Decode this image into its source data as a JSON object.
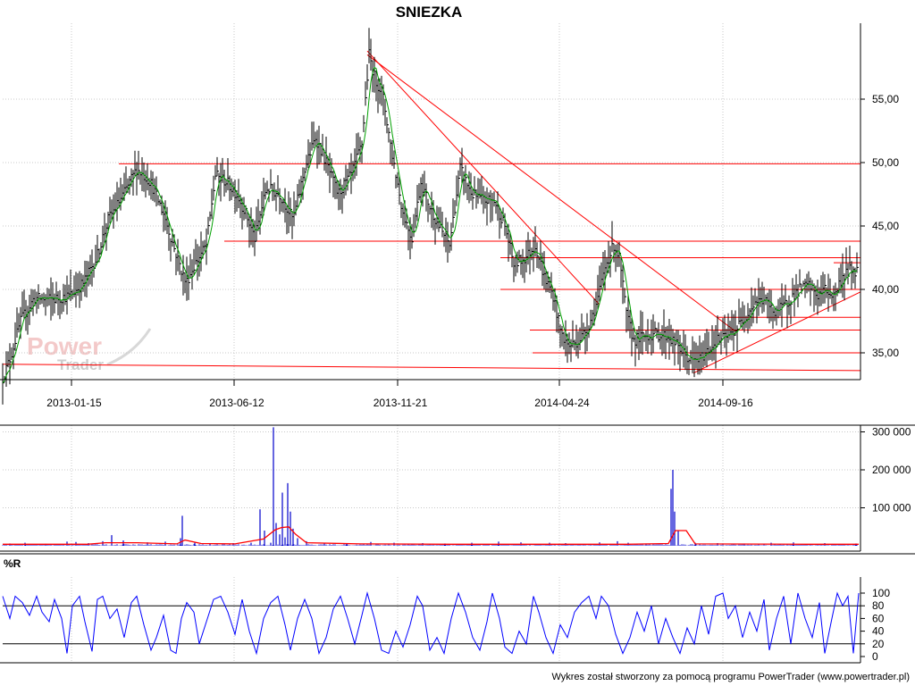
{
  "chart_data": [
    {
      "panel": "price",
      "type": "line",
      "title": "SNIEZKA",
      "xlabel": "",
      "ylabel": "",
      "x_tick_labels": [
        "2013-01-15",
        "2013-06-12",
        "2013-11-21",
        "2014-04-24",
        "2014-09-16"
      ],
      "y_tick_labels": [
        "35,00",
        "40,00",
        "45,00",
        "50,00",
        "55,00"
      ],
      "ylim": [
        32.5,
        60
      ],
      "grid": true,
      "price_anchors": [
        [
          0,
          33.0
        ],
        [
          8,
          34.5
        ],
        [
          20,
          37.5
        ],
        [
          35,
          39.3
        ],
        [
          55,
          39.2
        ],
        [
          75,
          39.5
        ],
        [
          90,
          40.5
        ],
        [
          105,
          42.5
        ],
        [
          118,
          45.5
        ],
        [
          135,
          47.5
        ],
        [
          150,
          49.5
        ],
        [
          165,
          48.5
        ],
        [
          180,
          46.0
        ],
        [
          193,
          43.0
        ],
        [
          205,
          40.5
        ],
        [
          215,
          42.0
        ],
        [
          228,
          43.5
        ],
        [
          238,
          49.0
        ],
        [
          250,
          48.5
        ],
        [
          262,
          47.5
        ],
        [
          272,
          46.0
        ],
        [
          282,
          44.0
        ],
        [
          295,
          48.0
        ],
        [
          310,
          47.5
        ],
        [
          325,
          45.5
        ],
        [
          338,
          49.5
        ],
        [
          350,
          52.0
        ],
        [
          362,
          50.0
        ],
        [
          375,
          47.5
        ],
        [
          390,
          49.0
        ],
        [
          402,
          51.5
        ],
        [
          410,
          58.5
        ],
        [
          417,
          56.5
        ],
        [
          425,
          55.5
        ],
        [
          435,
          51.0
        ],
        [
          448,
          46.0
        ],
        [
          458,
          44.0
        ],
        [
          468,
          48.5
        ],
        [
          478,
          46.5
        ],
        [
          488,
          45.0
        ],
        [
          500,
          43.5
        ],
        [
          512,
          49.5
        ],
        [
          525,
          47.5
        ],
        [
          538,
          47.0
        ],
        [
          550,
          47.0
        ],
        [
          562,
          45.0
        ],
        [
          572,
          42.0
        ],
        [
          585,
          42.5
        ],
        [
          596,
          43.5
        ],
        [
          606,
          41.0
        ],
        [
          616,
          39.5
        ],
        [
          625,
          36.5
        ],
        [
          633,
          35.5
        ],
        [
          645,
          36.0
        ],
        [
          655,
          37.0
        ],
        [
          665,
          39.0
        ],
        [
          675,
          42.0
        ],
        [
          684,
          43.5
        ],
        [
          690,
          42.5
        ],
        [
          698,
          38.0
        ],
        [
          706,
          36.0
        ],
        [
          718,
          36.3
        ],
        [
          730,
          36.5
        ],
        [
          745,
          36.3
        ],
        [
          758,
          35.3
        ],
        [
          770,
          34.3
        ],
        [
          780,
          34.5
        ],
        [
          790,
          35.3
        ],
        [
          800,
          36.0
        ],
        [
          812,
          36.3
        ],
        [
          822,
          37.0
        ],
        [
          832,
          38.0
        ],
        [
          842,
          39.0
        ],
        [
          852,
          39.2
        ],
        [
          862,
          38.3
        ],
        [
          872,
          38.5
        ],
        [
          882,
          39.3
        ],
        [
          892,
          40.0
        ],
        [
          902,
          40.3
        ],
        [
          912,
          39.5
        ],
        [
          920,
          40.0
        ],
        [
          930,
          39.5
        ],
        [
          940,
          41.0
        ],
        [
          948,
          41.5
        ],
        [
          956,
          41.5
        ]
      ],
      "horizontal_levels": [
        {
          "x_from": 130,
          "x_to": 960,
          "y": 49.9
        },
        {
          "x_from": 248,
          "x_to": 960,
          "y": 43.8
        },
        {
          "x_from": 557,
          "x_to": 960,
          "y": 42.5
        },
        {
          "x_from": 557,
          "x_to": 960,
          "y": 40.0
        },
        {
          "x_from": 590,
          "x_to": 960,
          "y": 36.8
        },
        {
          "x_from": 593,
          "x_to": 960,
          "y": 35.0
        },
        {
          "x_from": 800,
          "x_to": 960,
          "y": 37.8
        },
        {
          "x_from": 930,
          "x_to": 960,
          "y": 42.1
        }
      ],
      "trend_lines": [
        {
          "x1": 0,
          "y1": 34.1,
          "x2": 960,
          "y2": 33.6
        },
        {
          "x1": 408,
          "y1": 58.8,
          "x2": 668,
          "y2": 38.8
        },
        {
          "x1": 408,
          "y1": 58.5,
          "x2": 820,
          "y2": 36.7
        },
        {
          "x1": 773,
          "y1": 33.4,
          "x2": 960,
          "y2": 39.8
        }
      ]
    },
    {
      "panel": "volume",
      "type": "bar",
      "y_tick_labels": [
        "100 000",
        "200 000",
        "300 000"
      ],
      "ylim": [
        0,
        320000
      ],
      "volume_spikes": [
        [
          8,
          6000
        ],
        [
          25,
          8000
        ],
        [
          48,
          5000
        ],
        [
          72,
          11000
        ],
        [
          82,
          10000
        ],
        [
          96,
          7000
        ],
        [
          112,
          12000
        ],
        [
          122,
          28000
        ],
        [
          135,
          14000
        ],
        [
          162,
          9000
        ],
        [
          182,
          11000
        ],
        [
          199,
          20000
        ],
        [
          201,
          79000
        ],
        [
          215,
          8000
        ],
        [
          232,
          6000
        ],
        [
          258,
          7000
        ],
        [
          278,
          8000
        ],
        [
          288,
          96000
        ],
        [
          293,
          40000
        ],
        [
          300,
          8000
        ],
        [
          303,
          312000
        ],
        [
          306,
          60000
        ],
        [
          310,
          30000
        ],
        [
          313,
          140000
        ],
        [
          316,
          22000
        ],
        [
          319,
          165000
        ],
        [
          322,
          90000
        ],
        [
          325,
          45000
        ],
        [
          330,
          20000
        ],
        [
          340,
          12000
        ],
        [
          360,
          6000
        ],
        [
          385,
          7000
        ],
        [
          412,
          10000
        ],
        [
          438,
          8000
        ],
        [
          470,
          7000
        ],
        [
          495,
          6000
        ],
        [
          525,
          8000
        ],
        [
          555,
          11000
        ],
        [
          580,
          9000
        ],
        [
          612,
          8000
        ],
        [
          630,
          7000
        ],
        [
          668,
          9000
        ],
        [
          688,
          12000
        ],
        [
          700,
          8000
        ],
        [
          720,
          6000
        ],
        [
          748,
          150000
        ],
        [
          750,
          200000
        ],
        [
          752,
          90000
        ],
        [
          756,
          40000
        ],
        [
          775,
          8000
        ],
        [
          800,
          7000
        ],
        [
          830,
          6000
        ],
        [
          860,
          8000
        ],
        [
          885,
          9000
        ],
        [
          920,
          7000
        ],
        [
          955,
          6000
        ]
      ],
      "volume_average": [
        [
          0,
          4000
        ],
        [
          60,
          4000
        ],
        [
          95,
          4000
        ],
        [
          115,
          8000
        ],
        [
          150,
          8000
        ],
        [
          195,
          5000
        ],
        [
          204,
          15000
        ],
        [
          222,
          6000
        ],
        [
          260,
          5000
        ],
        [
          292,
          18000
        ],
        [
          305,
          42000
        ],
        [
          312,
          48000
        ],
        [
          320,
          50000
        ],
        [
          328,
          30000
        ],
        [
          340,
          8000
        ],
        [
          400,
          5000
        ],
        [
          500,
          4000
        ],
        [
          600,
          4000
        ],
        [
          700,
          4000
        ],
        [
          745,
          6000
        ],
        [
          753,
          40000
        ],
        [
          765,
          40000
        ],
        [
          775,
          5000
        ],
        [
          900,
          4000
        ],
        [
          958,
          4000
        ]
      ]
    },
    {
      "panel": "williams_r",
      "type": "line",
      "title": "%R",
      "y_tick_labels": [
        "0",
        "20",
        "40",
        "60",
        "80",
        "100"
      ],
      "reference_levels": [
        20,
        80
      ],
      "ylim": [
        0,
        100
      ],
      "wr_anchors": [
        [
          0,
          95
        ],
        [
          8,
          60
        ],
        [
          14,
          95
        ],
        [
          22,
          85
        ],
        [
          30,
          65
        ],
        [
          38,
          95
        ],
        [
          44,
          70
        ],
        [
          52,
          55
        ],
        [
          58,
          90
        ],
        [
          66,
          60
        ],
        [
          72,
          5
        ],
        [
          78,
          80
        ],
        [
          86,
          95
        ],
        [
          92,
          55
        ],
        [
          100,
          8
        ],
        [
          106,
          90
        ],
        [
          112,
          95
        ],
        [
          120,
          60
        ],
        [
          128,
          75
        ],
        [
          136,
          30
        ],
        [
          144,
          85
        ],
        [
          150,
          95
        ],
        [
          158,
          50
        ],
        [
          166,
          10
        ],
        [
          172,
          30
        ],
        [
          180,
          65
        ],
        [
          188,
          10
        ],
        [
          194,
          5
        ],
        [
          200,
          60
        ],
        [
          206,
          85
        ],
        [
          214,
          70
        ],
        [
          220,
          20
        ],
        [
          228,
          55
        ],
        [
          236,
          90
        ],
        [
          244,
          95
        ],
        [
          252,
          70
        ],
        [
          260,
          35
        ],
        [
          268,
          90
        ],
        [
          276,
          40
        ],
        [
          284,
          5
        ],
        [
          292,
          60
        ],
        [
          300,
          85
        ],
        [
          308,
          95
        ],
        [
          316,
          50
        ],
        [
          322,
          10
        ],
        [
          330,
          60
        ],
        [
          338,
          90
        ],
        [
          346,
          60
        ],
        [
          354,
          5
        ],
        [
          362,
          30
        ],
        [
          370,
          75
        ],
        [
          378,
          95
        ],
        [
          386,
          60
        ],
        [
          394,
          20
        ],
        [
          402,
          65
        ],
        [
          408,
          100
        ],
        [
          416,
          60
        ],
        [
          424,
          10
        ],
        [
          432,
          5
        ],
        [
          440,
          40
        ],
        [
          448,
          15
        ],
        [
          456,
          50
        ],
        [
          464,
          95
        ],
        [
          470,
          80
        ],
        [
          478,
          10
        ],
        [
          486,
          30
        ],
        [
          494,
          5
        ],
        [
          502,
          60
        ],
        [
          510,
          100
        ],
        [
          518,
          70
        ],
        [
          526,
          30
        ],
        [
          534,
          10
        ],
        [
          542,
          55
        ],
        [
          548,
          100
        ],
        [
          556,
          60
        ],
        [
          562,
          15
        ],
        [
          570,
          5
        ],
        [
          578,
          40
        ],
        [
          586,
          20
        ],
        [
          594,
          95
        ],
        [
          600,
          70
        ],
        [
          608,
          30
        ],
        [
          616,
          5
        ],
        [
          624,
          50
        ],
        [
          632,
          30
        ],
        [
          640,
          70
        ],
        [
          648,
          85
        ],
        [
          656,
          95
        ],
        [
          664,
          60
        ],
        [
          670,
          95
        ],
        [
          678,
          80
        ],
        [
          686,
          35
        ],
        [
          694,
          5
        ],
        [
          702,
          30
        ],
        [
          710,
          70
        ],
        [
          718,
          40
        ],
        [
          726,
          80
        ],
        [
          734,
          20
        ],
        [
          742,
          60
        ],
        [
          750,
          30
        ],
        [
          758,
          5
        ],
        [
          766,
          45
        ],
        [
          774,
          20
        ],
        [
          782,
          80
        ],
        [
          790,
          35
        ],
        [
          798,
          95
        ],
        [
          806,
          100
        ],
        [
          812,
          60
        ],
        [
          820,
          80
        ],
        [
          828,
          30
        ],
        [
          836,
          70
        ],
        [
          844,
          40
        ],
        [
          852,
          90
        ],
        [
          858,
          10
        ],
        [
          866,
          60
        ],
        [
          874,
          95
        ],
        [
          882,
          20
        ],
        [
          890,
          100
        ],
        [
          898,
          60
        ],
        [
          906,
          30
        ],
        [
          914,
          85
        ],
        [
          920,
          5
        ],
        [
          928,
          60
        ],
        [
          934,
          100
        ],
        [
          940,
          80
        ],
        [
          946,
          95
        ],
        [
          952,
          5
        ],
        [
          958,
          100
        ]
      ]
    }
  ],
  "watermark": {
    "line1": "Power",
    "line2": "Trader"
  },
  "footer": "Wykres został stworzony za pomocą programu PowerTrader (www.powertrader.pl)",
  "colors": {
    "price": "#000000",
    "moving_average": "#00a000",
    "levels": "#ff0000",
    "volume": "#0000cc",
    "volume_average": "#ff0000",
    "williams_r": "#0000ff",
    "grid": "#c8c8c8",
    "reference": "#000000"
  }
}
